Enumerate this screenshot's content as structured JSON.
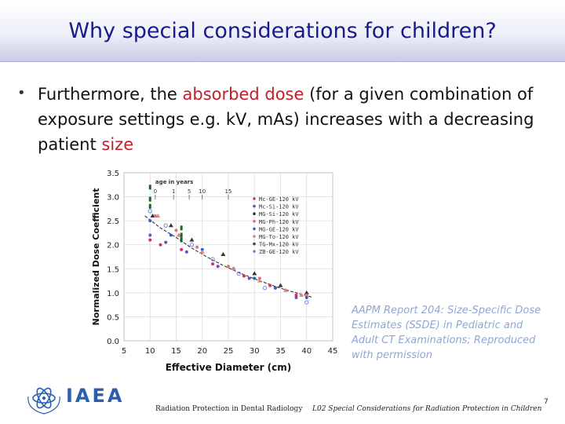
{
  "slide": {
    "title": "Why special considerations for children?",
    "bullet": {
      "part1": "Furthermore, the ",
      "highlight1": "absorbed dose",
      "part2": " (for a given combination of exposure settings e.g. kV, mAs) increases with a decreasing patient ",
      "highlight2": "size"
    },
    "credit": "AAPM Report 204: Size-Specific Dose Estimates (SSDE) in Pediatric and Adult CT Examinations; Reproduced with permission",
    "footer_left": "Radiation Protection in Dental Radiology",
    "footer_center": "L02 Special Considerations for Radiation Protection in Children",
    "page_number": "7",
    "logo_text": "IAEA",
    "colors": {
      "title": "#1a1a8c",
      "highlight": "#c0202a",
      "credit": "#8fa6d4"
    }
  },
  "chart_data": {
    "type": "scatter",
    "xlabel": "Effective Diameter (cm)",
    "ylabel": "Normalized Dose Coefficient",
    "xlim": [
      5,
      45
    ],
    "ylim": [
      0,
      3.5
    ],
    "xticks": [
      "5",
      "10",
      "15",
      "20",
      "25",
      "30",
      "35",
      "40",
      "45"
    ],
    "yticks": [
      "0.0",
      "0.5",
      "1.0",
      "1.5",
      "2.0",
      "2.5",
      "3.0",
      "3.5"
    ],
    "top_axis_title": "age in years",
    "top_axis_ticks": [
      {
        "label": "0",
        "x": 11
      },
      {
        "label": "1",
        "x": 14.5
      },
      {
        "label": "5",
        "x": 17.5
      },
      {
        "label": "10",
        "x": 20
      },
      {
        "label": "15",
        "x": 25
      }
    ],
    "legend": [
      "Mc-GE-120 kV",
      "Mc-Si-120 kV",
      "MG-Si-120 kV",
      "MG-Ph-120 kV",
      "MG-GE-120 kV",
      "MG-To-120 kV",
      "TG-Mx-120 kV",
      "ZB-GE-120 kV"
    ],
    "legend_colors": [
      "#d03070",
      "#7a4ab0",
      "#333333",
      "#e07070",
      "#3060c0",
      "#e08080",
      "#206030",
      "#8080e0"
    ],
    "series": [
      {
        "name": "Mc-GE-120 kV",
        "x": [
          10,
          12,
          16,
          22,
          28,
          33,
          38
        ],
        "y": [
          2.1,
          2.0,
          1.9,
          1.6,
          1.35,
          1.15,
          0.95
        ]
      },
      {
        "name": "Mc-Si-120 kV",
        "x": [
          10,
          13,
          17,
          23,
          29,
          34,
          38
        ],
        "y": [
          2.2,
          2.05,
          1.85,
          1.55,
          1.3,
          1.1,
          0.9
        ]
      },
      {
        "name": "MG-Si-120 kV",
        "x": [
          10.5,
          14,
          18,
          24,
          30,
          35,
          40
        ],
        "y": [
          2.6,
          2.4,
          2.1,
          1.8,
          1.4,
          1.15,
          1.0
        ]
      },
      {
        "name": "MG-Ph-120 kV",
        "x": [
          11,
          15,
          19,
          25,
          31,
          36,
          40
        ],
        "y": [
          2.6,
          2.3,
          1.95,
          1.55,
          1.3,
          1.05,
          0.95
        ]
      },
      {
        "name": "MG-GE-120 kV",
        "x": [
          10,
          14,
          20,
          26,
          30,
          34,
          40
        ],
        "y": [
          2.5,
          2.2,
          1.9,
          1.5,
          1.3,
          1.1,
          0.9
        ]
      },
      {
        "name": "MG-To-120 kV",
        "x": [
          11.5,
          15.5,
          20,
          26,
          31,
          36,
          39
        ],
        "y": [
          2.6,
          2.2,
          1.85,
          1.5,
          1.25,
          1.05,
          0.95
        ]
      },
      {
        "name": "TG-Mx-120 kV",
        "x": [
          10,
          10,
          10,
          16,
          16,
          16
        ],
        "y": [
          3.2,
          2.95,
          2.8,
          2.35,
          2.2,
          2.1
        ]
      },
      {
        "name": "ZB-GE-120 kV",
        "x": [
          10,
          13,
          18,
          22,
          27,
          32,
          40
        ],
        "y": [
          2.7,
          2.4,
          2.0,
          1.7,
          1.4,
          1.1,
          0.8
        ]
      }
    ],
    "fit_curve": {
      "x": [
        9,
        12,
        15,
        18,
        21,
        24,
        27,
        30,
        33,
        36,
        39,
        41
      ],
      "y": [
        2.6,
        2.35,
        2.15,
        1.93,
        1.74,
        1.57,
        1.42,
        1.29,
        1.17,
        1.06,
        0.97,
        0.91
      ]
    },
    "grid": true
  }
}
